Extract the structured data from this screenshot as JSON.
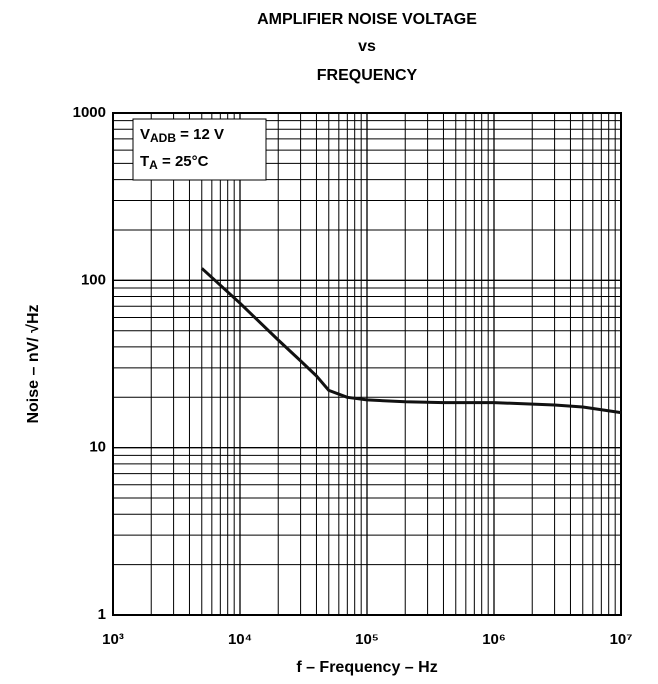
{
  "chart_data": {
    "type": "line",
    "title": [
      "AMPLIFIER NOISE VOLTAGE",
      "vs",
      "FREQUENCY"
    ],
    "x_label": "f – Frequency – Hz",
    "y_label": "Noise – nV/ √Hz",
    "annotations": [
      {
        "main": "V",
        "sub": "ADB",
        "rest": " = 12 V"
      },
      {
        "main": "T",
        "sub": "A",
        "rest": " = 25°C"
      }
    ],
    "x": [
      5000,
      10000,
      20000,
      30000,
      40000,
      50000,
      70000,
      100000,
      200000,
      400000,
      1000000,
      3000000,
      5000000,
      10000000
    ],
    "values": [
      118,
      73,
      44,
      33,
      26.8,
      22,
      20,
      19.3,
      18.8,
      18.6,
      18.6,
      18,
      17.5,
      16.2
    ],
    "color": "#111111",
    "xlog": true,
    "ylog": true,
    "grid": true,
    "minor_grid": true,
    "xlim": [
      1000,
      10000000
    ],
    "ylim": [
      1,
      1000
    ],
    "xticks": [
      {
        "value": 1000,
        "label": "10³"
      },
      {
        "value": 10000,
        "label": "10⁴"
      },
      {
        "value": 100000,
        "label": "10⁵"
      },
      {
        "value": 1000000,
        "label": "10⁶"
      },
      {
        "value": 10000000,
        "label": "10⁷"
      }
    ],
    "yticks": [
      1,
      10,
      100,
      1000
    ]
  }
}
